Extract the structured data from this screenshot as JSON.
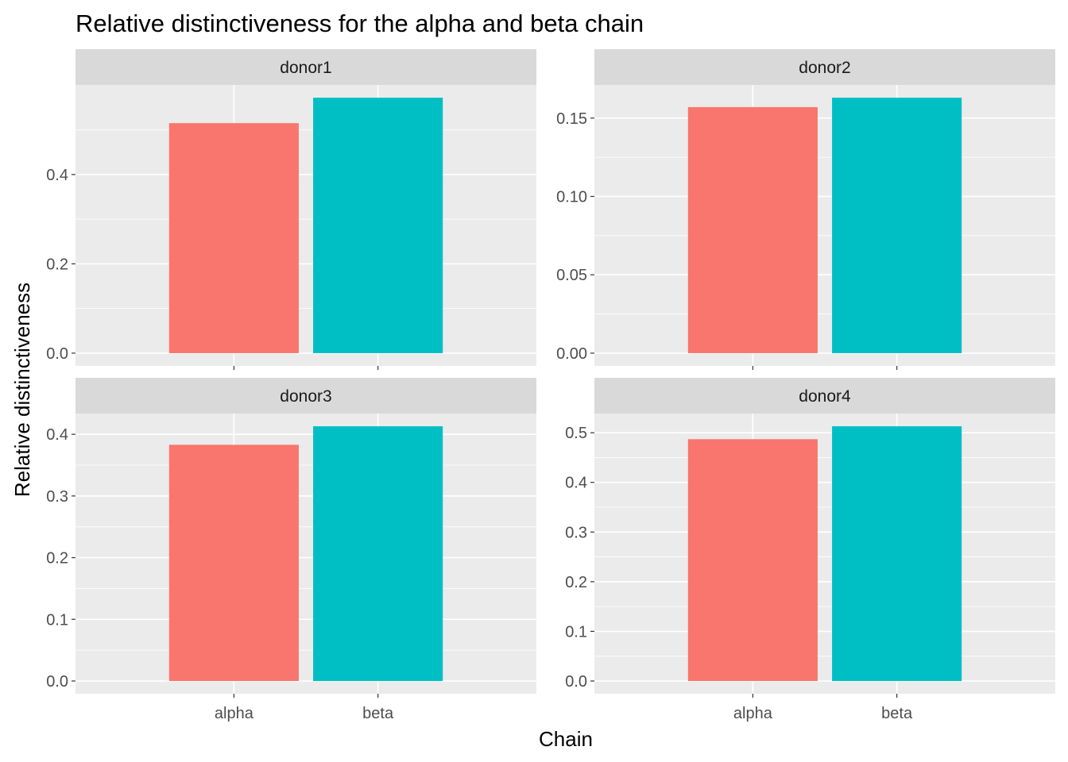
{
  "chart_data": {
    "type": "bar",
    "title": "Relative distinctiveness for the alpha and beta chain",
    "xlabel": "Chain",
    "ylabel": "Relative distinctiveness",
    "categories": [
      "alpha",
      "beta"
    ],
    "colors": {
      "alpha": "#F8766D",
      "beta": "#00BFC4"
    },
    "grid": true,
    "legend": "none",
    "facets": [
      {
        "name": "donor1",
        "values": [
          0.515,
          0.572
        ],
        "ylim": [
          -0.0286,
          0.6006
        ],
        "yticks": [
          0.0,
          0.2,
          0.4
        ],
        "ytick_labels": [
          "0.0",
          "0.2",
          "0.4"
        ]
      },
      {
        "name": "donor2",
        "values": [
          0.157,
          0.163
        ],
        "ylim": [
          -0.00815,
          0.17115
        ],
        "yticks": [
          0.0,
          0.05,
          0.1,
          0.15
        ],
        "ytick_labels": [
          "0.00",
          "0.05",
          "0.10",
          "0.15"
        ]
      },
      {
        "name": "donor3",
        "values": [
          0.383,
          0.413
        ],
        "ylim": [
          -0.02065,
          0.43365
        ],
        "yticks": [
          0.0,
          0.1,
          0.2,
          0.3,
          0.4
        ],
        "ytick_labels": [
          "0.0",
          "0.1",
          "0.2",
          "0.3",
          "0.4"
        ]
      },
      {
        "name": "donor4",
        "values": [
          0.487,
          0.513
        ],
        "ylim": [
          -0.02565,
          0.53865
        ],
        "yticks": [
          0.0,
          0.1,
          0.2,
          0.3,
          0.4,
          0.5
        ],
        "ytick_labels": [
          "0.0",
          "0.1",
          "0.2",
          "0.3",
          "0.4",
          "0.5"
        ]
      }
    ]
  }
}
